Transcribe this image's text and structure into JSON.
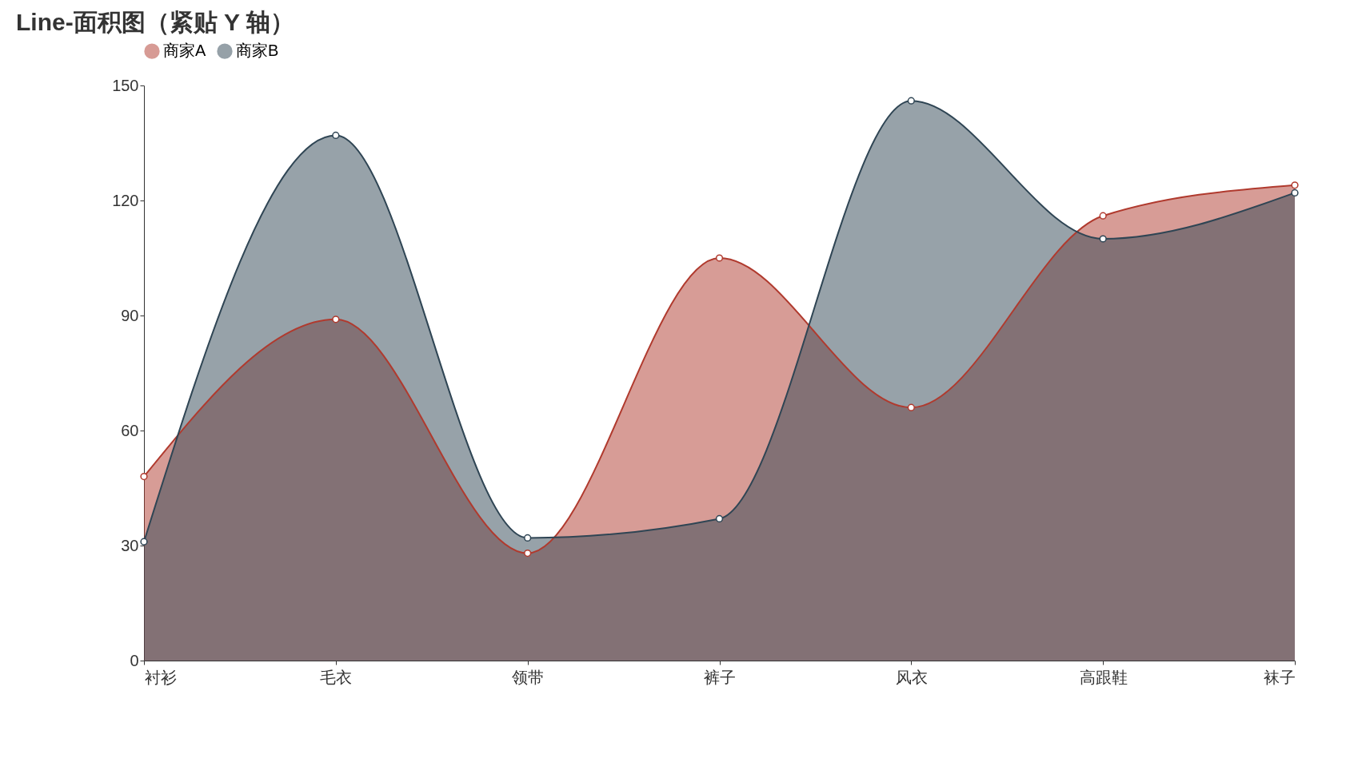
{
  "chart_data": {
    "type": "area",
    "title": "Line-面积图（紧贴 Y 轴）",
    "categories": [
      "衬衫",
      "毛衣",
      "领带",
      "裤子",
      "风衣",
      "高跟鞋",
      "袜子"
    ],
    "series": [
      {
        "name": "商家A",
        "color": "#b03a2e",
        "values": [
          48,
          89,
          28,
          105,
          66,
          116,
          124
        ]
      },
      {
        "name": "商家B",
        "color": "#2f4554",
        "values": [
          31,
          137,
          32,
          37,
          146,
          110,
          122
        ]
      }
    ],
    "ylim": [
      0,
      150
    ],
    "yticks": [
      0,
      30,
      60,
      90,
      120,
      150
    ],
    "legend": "top",
    "marker": "circle"
  }
}
